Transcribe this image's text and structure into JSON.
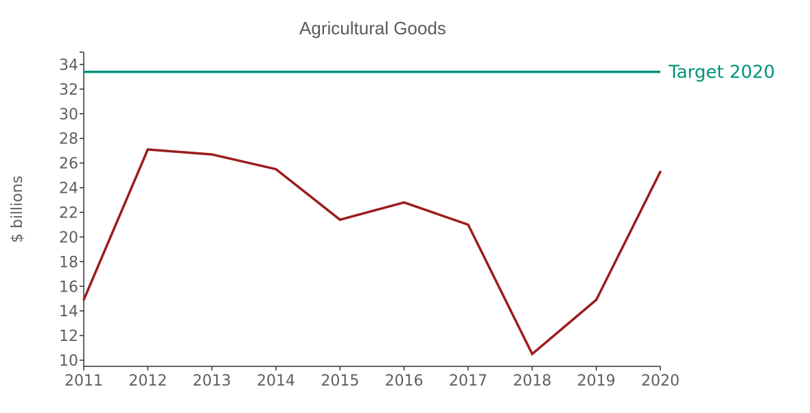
{
  "chart_data": {
    "type": "line",
    "title": "Agricultural Goods",
    "xlabel": "",
    "ylabel": "$ billions",
    "x": [
      "2011",
      "2012",
      "2013",
      "2014",
      "2015",
      "2016",
      "2017",
      "2018",
      "2019",
      "2020"
    ],
    "series": [
      {
        "values": [
          14.9,
          27.1,
          26.7,
          25.5,
          21.4,
          22.8,
          21.0,
          10.5,
          14.9,
          25.3
        ],
        "color": "#9b1c1c"
      }
    ],
    "reference_line": {
      "label": "Target 2020",
      "value": 33.4,
      "color": "#00937a"
    },
    "yticks": [
      10,
      12,
      14,
      16,
      18,
      20,
      22,
      24,
      26,
      28,
      30,
      32,
      34
    ],
    "ylim": [
      9.5,
      35
    ],
    "grid": false,
    "legend": "none"
  }
}
